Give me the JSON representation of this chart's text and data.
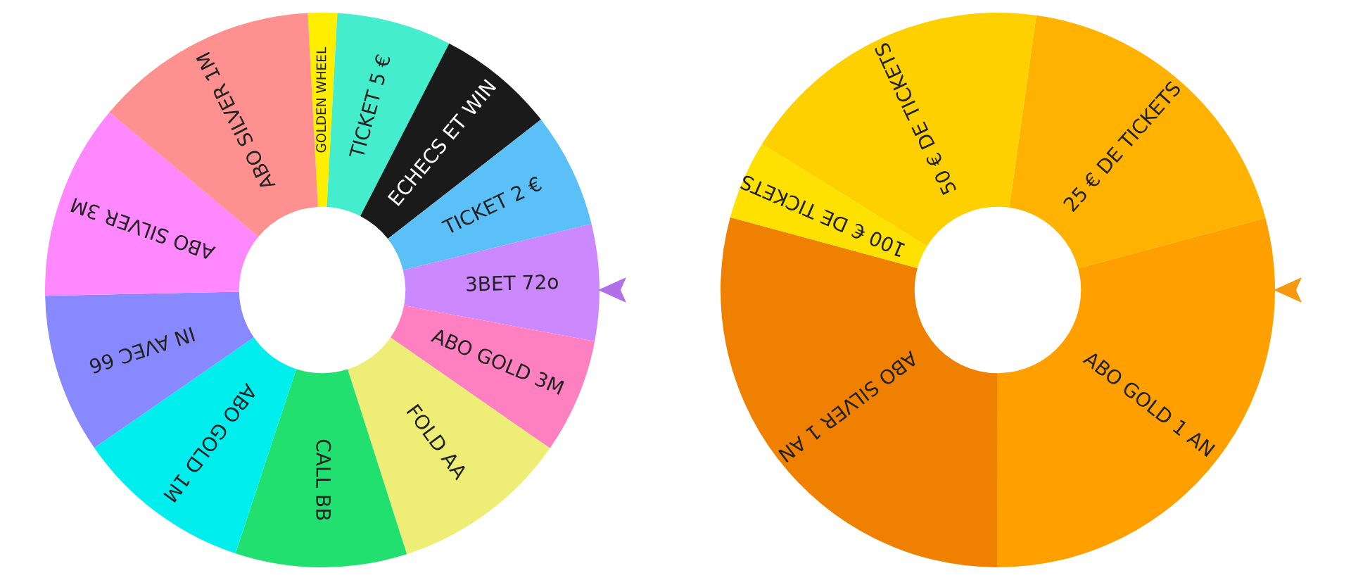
{
  "chart_data": [
    {
      "type": "donut",
      "categories": [
        "GOLDEN WHEEL",
        "TICKET 5 €",
        "ECHECS ET WIN",
        "TICKET 2 €",
        "3BET 72o",
        "ABO GOLD 3M",
        "FOLD AA",
        "CALL BB",
        "ABO GOLD 1M",
        "IN AVEC 66",
        "ABO SILVER 3M",
        "ABO SILVER 1M"
      ],
      "values": [
        1.7,
        6.7,
        6.9,
        6.7,
        6.8,
        6.7,
        10.4,
        10,
        10.3,
        9.3,
        11.4,
        13.1
      ],
      "colors": [
        "#ffee00",
        "#44eecc",
        "#1a1a1a",
        "#5bc0f8",
        "#cc88ff",
        "#ff80c0",
        "#eeee77",
        "#22e070",
        "#00eeee",
        "#8888ff",
        "#ff88ff",
        "#ff9090"
      ]
    },
    {
      "type": "donut",
      "categories": [
        "25 € DE TICKETS",
        "ABO GOLD 1 AN",
        "ABO SILVER 1 AN",
        "100 € DE TICKETS",
        "50 € DE TICKETS"
      ],
      "values": [
        18.6,
        29.2,
        29.2,
        4.6,
        18.4
      ],
      "colors": [
        "#ffb300",
        "#ffa000",
        "#f08000",
        "#ffe100",
        "#ffd000"
      ]
    }
  ]
}
